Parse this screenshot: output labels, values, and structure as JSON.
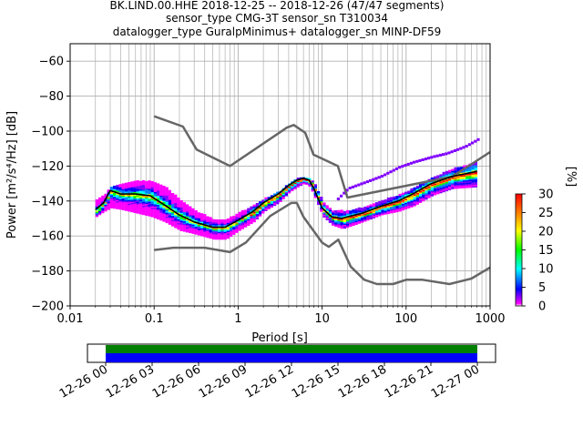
{
  "title_lines": [
    "BK.LIND.00.HHE   2018-12-25 -- 2018-12-26  (47/47 segments)",
    "sensor_type CMG-3T sensor_sn T310034",
    "datalogger_type GuralpMinimus+ datalogger_sn MINP-DF59"
  ],
  "colors": {
    "noise_model": "#666666",
    "mode_line": "#000000",
    "coverage_top": "#008000",
    "coverage_bottom": "#0000ff"
  },
  "chart_data": {
    "type": "heatmap",
    "xlabel": "Period [s]",
    "ylabel": "Power [m²/s⁴/Hz] [dB]",
    "xscale": "log",
    "xlim": [
      0.01,
      1000
    ],
    "ylim": [
      -200,
      -50
    ],
    "x_ticks": [
      0.01,
      0.1,
      1,
      10,
      100,
      1000
    ],
    "x_tick_labels": [
      "0.01",
      "0.1",
      "1",
      "10",
      "100",
      "1000"
    ],
    "y_ticks": [
      -200,
      -180,
      -160,
      -140,
      -120,
      -100,
      -80,
      -60
    ],
    "y_tick_labels": [
      "−200",
      "−180",
      "−160",
      "−140",
      "−120",
      "−100",
      "−80",
      "−60"
    ],
    "grid": true,
    "colorbar": {
      "label": "[%]",
      "range": [
        0,
        30
      ],
      "ticks": [
        0,
        5,
        10,
        15,
        20,
        25,
        30
      ],
      "tick_labels": [
        "0",
        "5",
        "10",
        "15",
        "20",
        "25",
        "30"
      ]
    },
    "series": [
      {
        "name": "",
        "role": "new-high-noise-model",
        "x": [
          0.1,
          0.22,
          0.32,
          0.8,
          3.8,
          4.6,
          6.3,
          7.9,
          15.4,
          20,
          354.8,
          1000
        ],
        "y": [
          -91.5,
          -97.4,
          -110.5,
          -120,
          -98,
          -96.5,
          -101,
          -113.5,
          -120,
          -138,
          -126,
          -112
        ]
      },
      {
        "name": "",
        "role": "new-low-noise-model",
        "x": [
          0.1,
          0.17,
          0.4,
          0.8,
          1.24,
          2.4,
          4.3,
          5.0,
          6.0,
          10.0,
          12.0,
          15.6,
          21.9,
          31.6,
          45,
          70,
          101,
          154,
          328,
          600,
          1000
        ],
        "y": [
          -168,
          -166.7,
          -166.7,
          -169.2,
          -163.7,
          -148.6,
          -141.1,
          -141.1,
          -149,
          -163.8,
          -166.2,
          -162.1,
          -177.5,
          -185,
          -187.5,
          -187.5,
          -185,
          -185,
          -187.5,
          -184.4,
          -178
        ]
      },
      {
        "name": "",
        "role": "mode",
        "x": [
          0.02,
          0.025,
          0.03,
          0.04,
          0.06,
          0.09,
          0.13,
          0.2,
          0.3,
          0.5,
          0.7,
          1,
          1.5,
          2,
          3,
          4,
          5,
          6,
          7,
          8,
          10,
          13,
          17,
          20,
          30,
          50,
          80,
          120,
          200,
          350,
          700
        ],
        "y": [
          -145,
          -141,
          -134,
          -136,
          -136,
          -137,
          -142,
          -148,
          -152,
          -155,
          -155,
          -151,
          -146,
          -141,
          -136,
          -131,
          -128,
          -127,
          -128,
          -133,
          -144,
          -149,
          -150,
          -149,
          -147,
          -143,
          -140,
          -136,
          -130,
          -126,
          -123
        ]
      }
    ],
    "psd_distribution": {
      "colormap": "pqlx",
      "core": {
        "x": [
          0.02,
          0.025,
          0.03,
          0.04,
          0.06,
          0.09,
          0.13,
          0.2,
          0.3,
          0.5,
          0.7,
          1,
          1.5,
          2,
          3,
          4,
          5,
          6,
          7,
          8,
          10,
          13,
          17,
          20,
          30,
          50,
          80,
          120,
          200,
          350,
          700
        ],
        "upper": [
          -139,
          -136,
          -131,
          -130,
          -128,
          -128,
          -131,
          -139,
          -145,
          -150,
          -150,
          -146,
          -142,
          -138,
          -134,
          -129,
          -126,
          -126,
          -127,
          -130,
          -140,
          -145,
          -145,
          -145,
          -143,
          -139,
          -136,
          -132,
          -126,
          -121,
          -117
        ],
        "lower": [
          -148,
          -145,
          -143,
          -144,
          -146,
          -148,
          -151,
          -156,
          -158,
          -161,
          -161,
          -156,
          -151,
          -145,
          -140,
          -134,
          -131,
          -129,
          -131,
          -137,
          -148,
          -153,
          -155,
          -154,
          -151,
          -147,
          -145,
          -142,
          -136,
          -132,
          -131
        ]
      },
      "outlier_band": {
        "x": [
          15,
          20,
          30,
          50,
          80,
          120,
          200,
          300,
          500,
          700
        ],
        "y": [
          -138,
          -132,
          -129,
          -125,
          -120,
          -117,
          -114,
          -112,
          -108,
          -104
        ]
      }
    }
  },
  "coverage": {
    "xlim": [
      "12-25 23:00",
      "12-27 01:00"
    ],
    "data_start": "12-26 00",
    "data_end": "12-27 00",
    "tick_labels": [
      "12-26 00",
      "12-26 03",
      "12-26 06",
      "12-26 09",
      "12-26 12",
      "12-26 15",
      "12-26 18",
      "12-26 21",
      "12-27 00"
    ]
  }
}
